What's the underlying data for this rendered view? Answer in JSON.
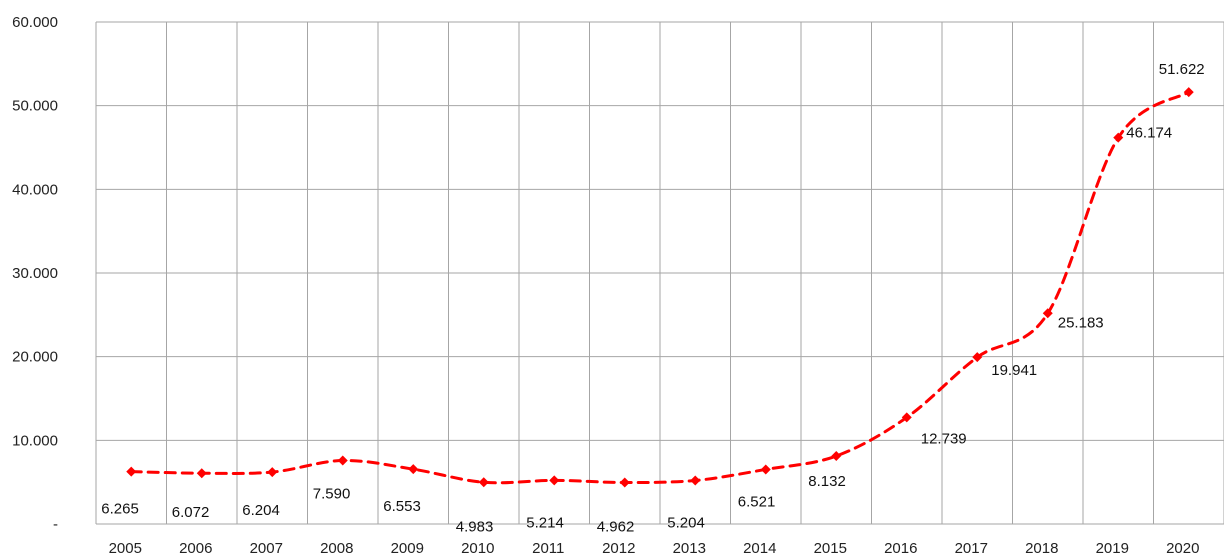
{
  "chart_data": {
    "type": "line",
    "title": "",
    "xlabel": "",
    "ylabel": "",
    "categories": [
      "2005",
      "2006",
      "2007",
      "2008",
      "2009",
      "2010",
      "2011",
      "2012",
      "2013",
      "2014",
      "2015",
      "2016",
      "2017",
      "2018",
      "2019",
      "2020"
    ],
    "series": [
      {
        "values": [
          6265,
          6072,
          6204,
          7590,
          6553,
          4983,
          5214,
          4962,
          5204,
          6521,
          8132,
          12739,
          19941,
          25183,
          46174,
          51622
        ],
        "data_labels": [
          "6.265",
          "6.072",
          "6.204",
          "7.590",
          "6.553",
          "4.983",
          "5.214",
          "4.962",
          "5.204",
          "6.521",
          "8.132",
          "12.739",
          "19.941",
          "25.183",
          "46.174",
          "51.622"
        ],
        "color": "#ff0000",
        "line_style": "dashed",
        "marker": "diamond"
      }
    ],
    "ylim": [
      0,
      60000
    ],
    "y_ticks": [
      0,
      10000,
      20000,
      30000,
      40000,
      50000,
      60000
    ],
    "y_tick_labels": [
      "-",
      "10.000",
      "20.000",
      "30.000",
      "40.000",
      "50.000",
      "60.000"
    ],
    "grid": true,
    "legend": "none"
  }
}
